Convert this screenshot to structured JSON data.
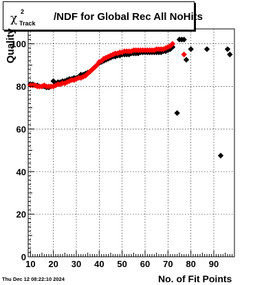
{
  "chart_data": {
    "type": "scatter",
    "title": "/NDF for Global Rec All NoHits",
    "title_symbol": "χ",
    "title_sup": "2",
    "title_sub": "Track",
    "xlabel": "No. of Fit Points",
    "ylabel": "Quality",
    "xlim": [
      9,
      99
    ],
    "ylim": [
      0,
      107
    ],
    "xticks": [
      "10",
      "20",
      "30",
      "40",
      "50",
      "60",
      "70",
      "80",
      "90"
    ],
    "yticks": [
      "0",
      "20",
      "40",
      "60",
      "80",
      "100"
    ],
    "grid": true,
    "series": [
      {
        "color": "#000000",
        "marker": "diamond",
        "points": [
          [
            10,
            81
          ],
          [
            11,
            81
          ],
          [
            12,
            80.5
          ],
          [
            13,
            80.5
          ],
          [
            14,
            80
          ],
          [
            15,
            80
          ],
          [
            16,
            80
          ],
          [
            17,
            79.5
          ],
          [
            18,
            79.5
          ],
          [
            19,
            80
          ],
          [
            20,
            82.5
          ],
          [
            21,
            81
          ],
          [
            22,
            82
          ],
          [
            23,
            82
          ],
          [
            24,
            82.5
          ],
          [
            25,
            82.5
          ],
          [
            26,
            83
          ],
          [
            27,
            83.5
          ],
          [
            28,
            83.5
          ],
          [
            29,
            84
          ],
          [
            30,
            84
          ],
          [
            31,
            84.5
          ],
          [
            32,
            85.5
          ],
          [
            33,
            85.5
          ],
          [
            34,
            86
          ],
          [
            35,
            86.5
          ],
          [
            36,
            87
          ],
          [
            37,
            88
          ],
          [
            38,
            89
          ],
          [
            39,
            90
          ],
          [
            40,
            91
          ],
          [
            41,
            91.5
          ],
          [
            42,
            92
          ],
          [
            43,
            92.5
          ],
          [
            44,
            93
          ],
          [
            45,
            93.5
          ],
          [
            46,
            94
          ],
          [
            47,
            94
          ],
          [
            48,
            94.5
          ],
          [
            49,
            94.5
          ],
          [
            50,
            95
          ],
          [
            51,
            95
          ],
          [
            52,
            95
          ],
          [
            53,
            95
          ],
          [
            54,
            95.5
          ],
          [
            55,
            95.5
          ],
          [
            56,
            95.5
          ],
          [
            57,
            95.5
          ],
          [
            58,
            96
          ],
          [
            59,
            96
          ],
          [
            60,
            96
          ],
          [
            61,
            96
          ],
          [
            62,
            96
          ],
          [
            63,
            96
          ],
          [
            64,
            96
          ],
          [
            65,
            96
          ],
          [
            66,
            96
          ],
          [
            67,
            96
          ],
          [
            68,
            96.5
          ],
          [
            69,
            96.5
          ],
          [
            70,
            97
          ],
          [
            71,
            97.5
          ],
          [
            72,
            98.5
          ],
          [
            74,
            67.5
          ],
          [
            75,
            102
          ],
          [
            76,
            102
          ],
          [
            77,
            102
          ],
          [
            78,
            92.5
          ],
          [
            80,
            97.5
          ],
          [
            87,
            97.5
          ],
          [
            93,
            47.5
          ],
          [
            96,
            97.5
          ],
          [
            97,
            95
          ]
        ]
      },
      {
        "color": "#ff0000",
        "marker": "diamond",
        "points": [
          [
            10,
            80.5
          ],
          [
            11,
            80.5
          ],
          [
            12,
            80.5
          ],
          [
            13,
            80
          ],
          [
            14,
            80
          ],
          [
            15,
            80
          ],
          [
            16,
            80.5
          ],
          [
            17,
            80
          ],
          [
            18,
            80
          ],
          [
            19,
            80
          ],
          [
            20,
            80
          ],
          [
            21,
            80.5
          ],
          [
            22,
            81
          ],
          [
            23,
            81
          ],
          [
            24,
            81.5
          ],
          [
            25,
            81.5
          ],
          [
            26,
            82
          ],
          [
            27,
            82.5
          ],
          [
            28,
            83
          ],
          [
            29,
            83
          ],
          [
            30,
            83.5
          ],
          [
            31,
            84
          ],
          [
            32,
            84
          ],
          [
            33,
            84.5
          ],
          [
            34,
            85
          ],
          [
            35,
            86
          ],
          [
            36,
            87
          ],
          [
            37,
            88
          ],
          [
            38,
            89
          ],
          [
            39,
            90
          ],
          [
            40,
            91.5
          ],
          [
            41,
            92
          ],
          [
            42,
            93
          ],
          [
            43,
            93.5
          ],
          [
            44,
            94
          ],
          [
            45,
            94.5
          ],
          [
            46,
            95
          ],
          [
            47,
            95.5
          ],
          [
            48,
            95.5
          ],
          [
            49,
            96
          ],
          [
            50,
            96
          ],
          [
            51,
            96.5
          ],
          [
            52,
            96.5
          ],
          [
            53,
            96.5
          ],
          [
            54,
            96.5
          ],
          [
            55,
            97
          ],
          [
            56,
            97
          ],
          [
            57,
            97
          ],
          [
            58,
            97
          ],
          [
            59,
            97
          ],
          [
            60,
            97
          ],
          [
            61,
            97
          ],
          [
            62,
            97
          ],
          [
            63,
            97
          ],
          [
            64,
            97
          ],
          [
            65,
            97.5
          ],
          [
            66,
            97.5
          ],
          [
            67,
            97.5
          ],
          [
            68,
            97.5
          ],
          [
            69,
            98
          ],
          [
            70,
            98.5
          ],
          [
            71,
            99
          ],
          [
            72,
            100
          ],
          [
            77,
            95
          ]
        ]
      }
    ]
  },
  "timestamp": "Thu Dec 12 08:22:10 2024"
}
